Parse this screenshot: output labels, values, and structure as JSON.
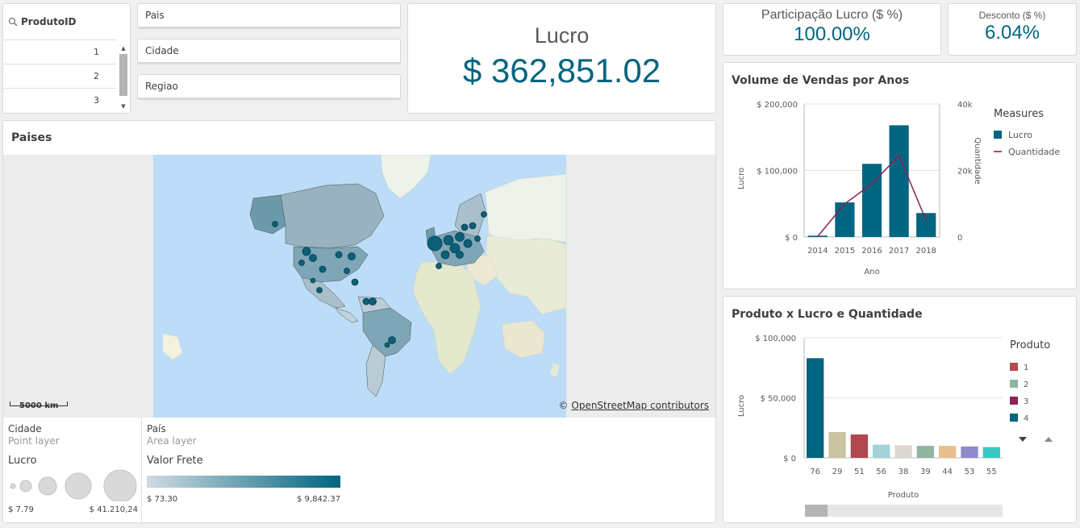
{
  "filters": {
    "produto_id": {
      "title": "ProdutoID",
      "rows": [
        "1",
        "2",
        "3"
      ]
    },
    "pais": "Pais",
    "cidade": "Cidade",
    "regiao": "Regiao"
  },
  "kpis": {
    "lucro": {
      "label": "Lucro",
      "value": "$ 362,851.02"
    },
    "participacao": {
      "label": "Participação Lucro ($ %)",
      "value": "100.00%"
    },
    "desconto": {
      "label": "Desconto ($ %)",
      "value": "6.04%"
    }
  },
  "map": {
    "title": "Paises",
    "scale_label": "5000 km",
    "attribution_prefix": "©",
    "attribution_link": "OpenStreetMap contributors",
    "legend": {
      "point_layer_name": "Cidade",
      "point_layer_type": "Point layer",
      "point_measure": "Lucro",
      "point_min": "$ 7.79",
      "point_max": "$ 41.210,24",
      "area_layer_name": "País",
      "area_layer_type": "Area layer",
      "area_measure": "Valor Frete",
      "area_min": "$ 73.30",
      "area_max": "$ 9,842.37"
    }
  },
  "chart_data": [
    {
      "type": "bar",
      "title": "Volume de Vendas por Anos",
      "xlabel": "Ano",
      "ylabel": "Lucro",
      "y2label": "Quantidade",
      "categories": [
        "2014",
        "2015",
        "2016",
        "2017",
        "2018"
      ],
      "series": [
        {
          "name": "Lucro",
          "type": "bar",
          "values": [
            2000,
            52000,
            110000,
            168000,
            36000
          ],
          "color": "#006580"
        },
        {
          "name": "Quantidade",
          "type": "line",
          "axis": "right",
          "values": [
            200,
            10000,
            16000,
            24500,
            5000
          ],
          "color": "#8e2157"
        }
      ],
      "ylim": [
        0,
        200000
      ],
      "y2lim": [
        0,
        40000
      ],
      "yticks": [
        "$ 0",
        "$ 100,000",
        "$ 200,000"
      ],
      "y2ticks": [
        "0",
        "20k",
        "40k"
      ],
      "legend_title": "Measures",
      "legend_placement": "right"
    },
    {
      "type": "bar",
      "title": "Produto x Lucro e Quantidade",
      "xlabel": "Produto",
      "ylabel": "Lucro",
      "categories": [
        "76",
        "29",
        "51",
        "56",
        "38",
        "39",
        "44",
        "53",
        "55"
      ],
      "values": [
        83000,
        21500,
        19500,
        11000,
        10500,
        10000,
        10000,
        9500,
        9000
      ],
      "colors": [
        "#006580",
        "#c9c5a3",
        "#b0484f",
        "#a3d2d8",
        "#dcd7d0",
        "#8fb5a0",
        "#e6c08f",
        "#8e8acb",
        "#39c8c1"
      ],
      "ylim": [
        0,
        100000
      ],
      "yticks": [
        "$ 0",
        "$ 50,000",
        "$ 100,000"
      ],
      "legend_title": "Produto",
      "legend_items": [
        {
          "name": "1",
          "color": "#b0484f"
        },
        {
          "name": "2",
          "color": "#8fb5a0"
        },
        {
          "name": "3",
          "color": "#8e2157"
        },
        {
          "name": "4",
          "color": "#006580"
        }
      ],
      "legend_placement": "right"
    }
  ]
}
